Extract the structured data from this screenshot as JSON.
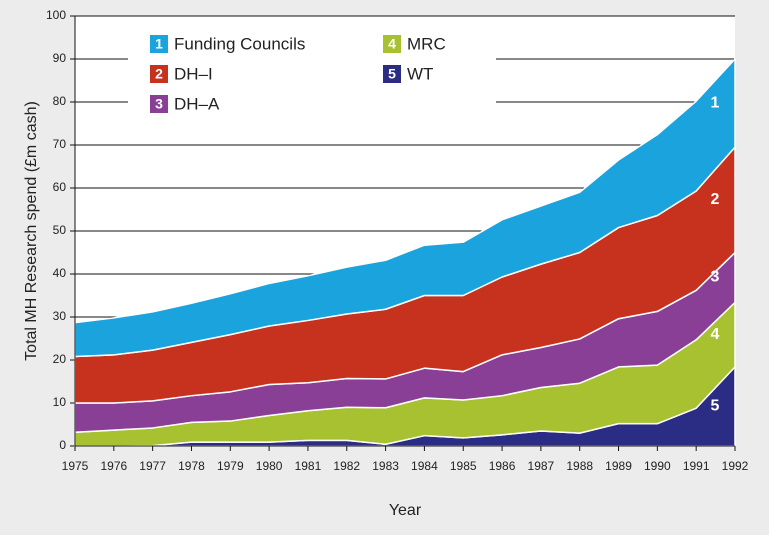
{
  "chart_data": {
    "type": "stacked_area",
    "y_label": "Total MH Research spend (£m cash)",
    "x_label": "Year",
    "x": [
      1975,
      1976,
      1977,
      1978,
      1979,
      1980,
      1981,
      1982,
      1983,
      1984,
      1985,
      1986,
      1987,
      1988,
      1989,
      1990,
      1991,
      1992
    ],
    "xlim": [
      1975,
      1992
    ],
    "xticks": [
      1975,
      1976,
      1977,
      1978,
      1979,
      1980,
      1981,
      1982,
      1983,
      1984,
      1985,
      1986,
      1987,
      1988,
      1989,
      1990,
      1991,
      1992
    ],
    "ylim": [
      0,
      100
    ],
    "yticks": [
      0,
      10,
      20,
      30,
      40,
      50,
      60,
      70,
      80,
      90,
      100
    ],
    "grid": true,
    "legend": "upper left",
    "series": [
      {
        "number": "1",
        "name": "Funding Councils",
        "color": "#1ba3dd",
        "values": [
          7.9,
          8.6,
          8.9,
          9.1,
          9.5,
          9.9,
          10.4,
          10.9,
          11.4,
          11.7,
          12.4,
          13.3,
          13.5,
          14.0,
          15.7,
          18.8,
          20.9,
          20.5
        ]
      },
      {
        "number": "2",
        "name": "DH–I",
        "color": "#c7321f",
        "values": [
          10.8,
          11.2,
          11.8,
          12.4,
          13.3,
          13.6,
          14.5,
          15.0,
          16.2,
          16.9,
          17.7,
          18.1,
          19.4,
          20.1,
          21.2,
          22.3,
          23.1,
          24.5
        ]
      },
      {
        "number": "3",
        "name": "DH–A",
        "color": "#8a3f97",
        "values": [
          6.8,
          6.3,
          6.3,
          6.2,
          6.8,
          7.2,
          6.5,
          6.7,
          6.7,
          6.9,
          6.6,
          9.5,
          9.3,
          10.3,
          11.2,
          12.5,
          11.5,
          11.6
        ]
      },
      {
        "number": "4",
        "name": "MRC",
        "color": "#a7c131",
        "values": [
          3.2,
          3.7,
          4.1,
          4.6,
          4.9,
          6.2,
          6.9,
          7.7,
          8.5,
          8.8,
          8.8,
          9.1,
          10.1,
          11.6,
          13.2,
          13.6,
          15.9,
          15.0
        ]
      },
      {
        "number": "5",
        "name": "WT",
        "color": "#2b2d84",
        "values": [
          0,
          0,
          0.1,
          0.9,
          0.9,
          0.9,
          1.3,
          1.3,
          0.4,
          2.4,
          1.9,
          2.6,
          3.5,
          3.0,
          5.2,
          5.2,
          8.8,
          18.4
        ]
      }
    ]
  }
}
